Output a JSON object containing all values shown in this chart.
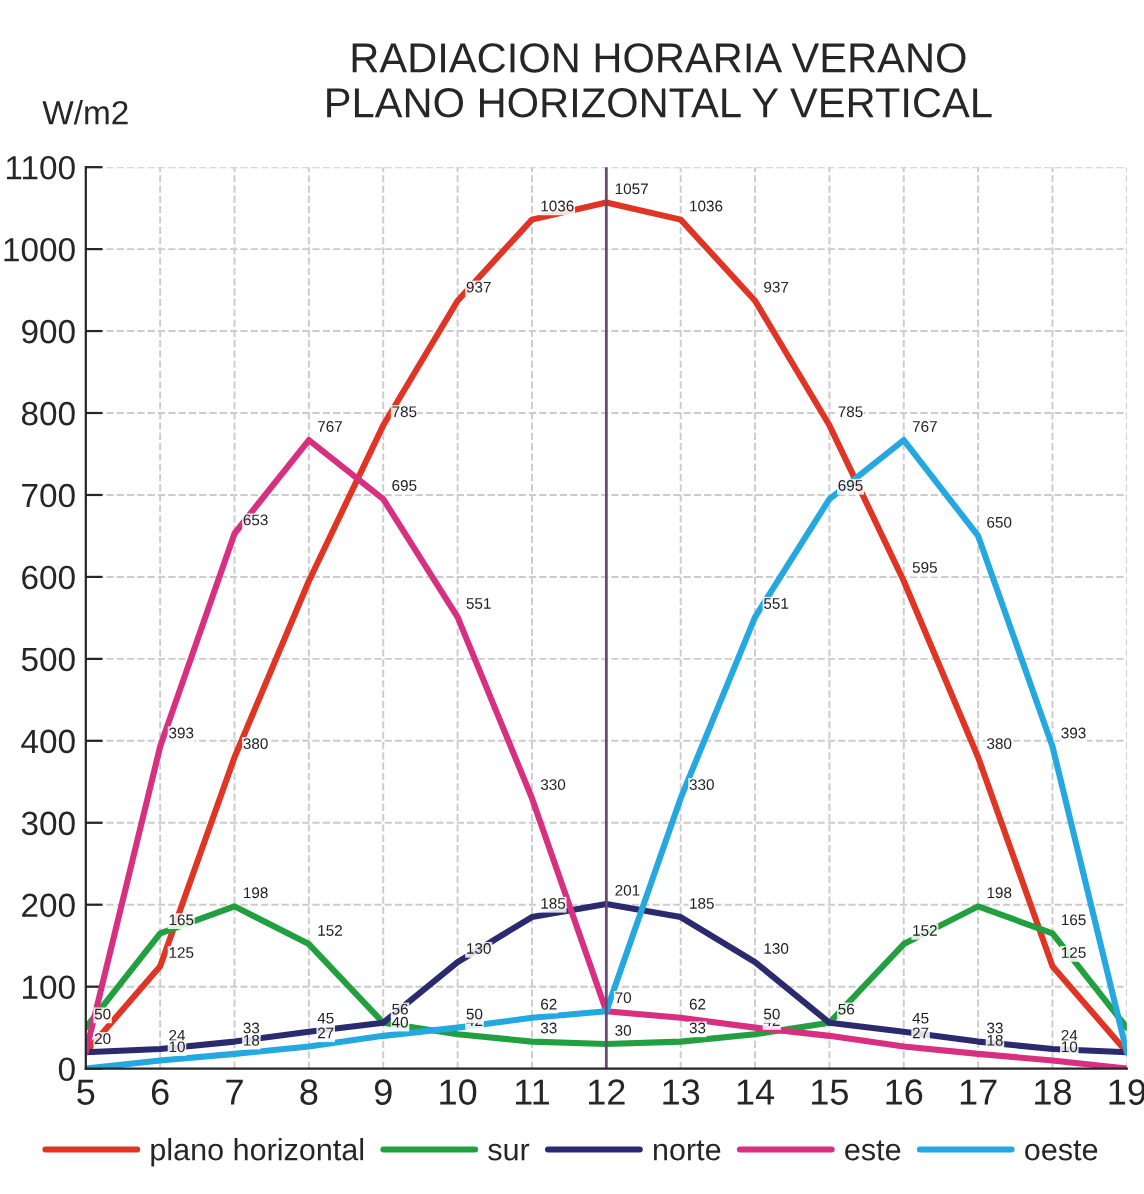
{
  "chart_data": {
    "type": "line",
    "title": "RADIACION HORARIA VERANO\nPLANO HORIZONTAL Y VERTICAL",
    "ylabel": "W/m2",
    "x": [
      5,
      6,
      7,
      8,
      9,
      10,
      11,
      12,
      13,
      14,
      15,
      16,
      17,
      18,
      19
    ],
    "series": [
      {
        "name": "plano horizontal",
        "color": "#e03525",
        "values": [
          20,
          125,
          380,
          595,
          785,
          937,
          1036,
          1057,
          1036,
          937,
          785,
          595,
          380,
          125,
          20
        ],
        "value_labels": [
          "20",
          "125",
          "380",
          null,
          "785",
          "937",
          "1036",
          "1057",
          "1036",
          "937",
          "785",
          "595",
          "380",
          "125",
          null
        ]
      },
      {
        "name": "sur",
        "color": "#22a040",
        "values": [
          50,
          165,
          198,
          152,
          56,
          42,
          33,
          30,
          33,
          42,
          56,
          152,
          198,
          165,
          50
        ],
        "value_labels": [
          "50",
          "165",
          "198",
          "152",
          "56",
          "42",
          "33",
          "30",
          "33",
          "42",
          "56",
          "152",
          "198",
          "165",
          null
        ]
      },
      {
        "name": "norte",
        "color": "#2b2a6e",
        "values": [
          20,
          24,
          33,
          45,
          56,
          130,
          185,
          201,
          185,
          130,
          56,
          45,
          33,
          24,
          20
        ],
        "value_labels": [
          null,
          "24",
          "33",
          "45",
          null,
          "130",
          "185",
          "201",
          "185",
          "130",
          null,
          "45",
          "33",
          "24",
          null
        ]
      },
      {
        "name": "este",
        "color": "#d83080",
        "values": [
          20,
          393,
          653,
          767,
          695,
          551,
          330,
          70,
          62,
          50,
          40,
          27,
          18,
          10,
          0
        ],
        "value_labels": [
          null,
          "393",
          "653",
          "767",
          "695",
          "551",
          "330",
          "70",
          "62",
          "50",
          null,
          "27",
          "18",
          "10",
          null
        ]
      },
      {
        "name": "oeste",
        "color": "#25a8e0",
        "values": [
          0,
          10,
          18,
          27,
          40,
          50,
          62,
          70,
          330,
          551,
          695,
          767,
          650,
          393,
          20
        ],
        "value_labels": [
          null,
          "10",
          "18",
          "27",
          "40",
          "50",
          "62",
          null,
          "330",
          "551",
          "695",
          "767",
          "650",
          "393",
          null
        ]
      }
    ],
    "xlim": [
      5,
      19
    ],
    "xticks": [
      5,
      6,
      7,
      8,
      9,
      10,
      11,
      12,
      13,
      14,
      15,
      16,
      17,
      18,
      19
    ],
    "ylim": [
      0,
      1100
    ],
    "yticks": [
      0,
      100,
      200,
      300,
      400,
      500,
      600,
      700,
      800,
      900,
      1000,
      1100
    ],
    "ref_lines": [
      {
        "axis": "x",
        "value": 12,
        "color": "#6a4a70"
      }
    ],
    "grid": true,
    "legend": "bottom",
    "marker": "none",
    "line_style": "solid"
  }
}
